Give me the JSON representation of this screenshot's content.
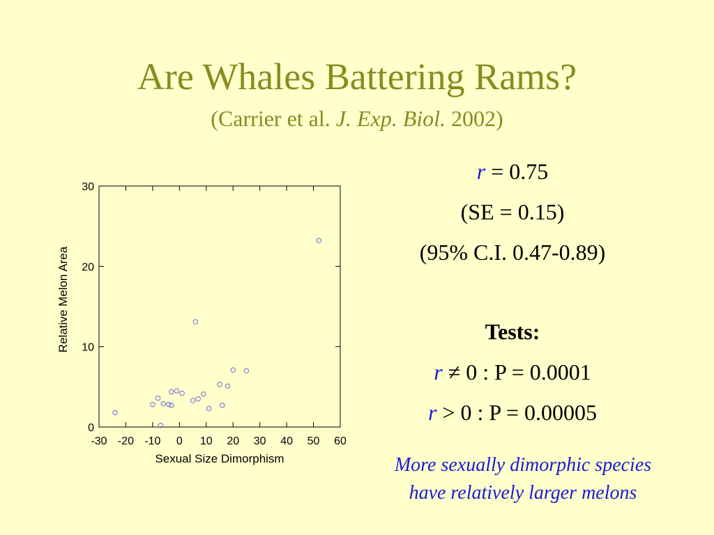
{
  "slide": {
    "title": "Are Whales Battering Rams?",
    "subtitle_prefix": "(Carrier et al. ",
    "subtitle_journal": "J. Exp. Biol.",
    "subtitle_suffix": " 2002)"
  },
  "stats": {
    "r_symbol": "r",
    "r_value": " = 0.75",
    "se": "(SE = 0.15)",
    "ci": "(95% C.I. 0.47-0.89)",
    "tests_heading": "Tests:",
    "test1": " ≠ 0 : P = 0.0001",
    "test2": " > 0 : P = 0.00005"
  },
  "conclusion": {
    "line1": "More sexually dimorphic species",
    "line2": "have relatively larger melons"
  },
  "colors": {
    "background": "#ffffcc",
    "title": "#8a8a1f",
    "accent_blue": "#1a1ad6",
    "marker": "#6b6bd6"
  },
  "chart_data": {
    "type": "scatter",
    "title": "",
    "xlabel": "Sexual Size Dimorphism",
    "ylabel": "Relative Melon Area",
    "xlim": [
      -30,
      60
    ],
    "ylim": [
      0,
      30
    ],
    "xticks": [
      -30,
      -20,
      -10,
      0,
      10,
      20,
      30,
      40,
      50,
      60
    ],
    "yticks": [
      0,
      10,
      20,
      30
    ],
    "grid": false,
    "marker": "open-circle",
    "points": [
      {
        "x": -24,
        "y": 1.8
      },
      {
        "x": -10,
        "y": 2.8
      },
      {
        "x": -8,
        "y": 3.6
      },
      {
        "x": -7,
        "y": 0.2
      },
      {
        "x": -6,
        "y": 2.9
      },
      {
        "x": -4,
        "y": 2.8
      },
      {
        "x": -3,
        "y": 4.4
      },
      {
        "x": -3,
        "y": 2.7
      },
      {
        "x": -1,
        "y": 4.5
      },
      {
        "x": 1,
        "y": 4.2
      },
      {
        "x": 5,
        "y": 3.3
      },
      {
        "x": 6,
        "y": 13.1
      },
      {
        "x": 7,
        "y": 3.5
      },
      {
        "x": 9,
        "y": 4.1
      },
      {
        "x": 11,
        "y": 2.3
      },
      {
        "x": 15,
        "y": 5.3
      },
      {
        "x": 16,
        "y": 2.7
      },
      {
        "x": 18,
        "y": 5.1
      },
      {
        "x": 20,
        "y": 7.1
      },
      {
        "x": 25,
        "y": 7.0
      },
      {
        "x": 52,
        "y": 23.2
      }
    ]
  }
}
